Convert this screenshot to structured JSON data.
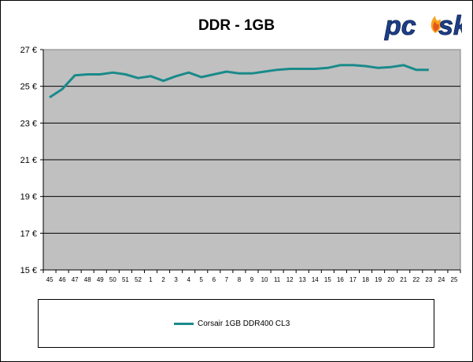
{
  "chart_data": {
    "type": "line",
    "title": "DDR - 1GB",
    "xlabel": "",
    "ylabel": "",
    "categories": [
      "45",
      "46",
      "47",
      "48",
      "49",
      "50",
      "51",
      "52",
      "1",
      "2",
      "3",
      "4",
      "5",
      "6",
      "7",
      "8",
      "9",
      "10",
      "11",
      "12",
      "13",
      "14",
      "15",
      "16",
      "17",
      "18",
      "19",
      "20",
      "21",
      "22",
      "23",
      "24",
      "25"
    ],
    "y_tick_labels": [
      "27 €",
      "25 €",
      "23 €",
      "21 €",
      "19 €",
      "17 €",
      "15 €"
    ],
    "y_ticks": [
      27,
      25,
      23,
      21,
      19,
      17,
      15
    ],
    "ylim": [
      15,
      27
    ],
    "grid": true,
    "legend_position": "bottom",
    "series": [
      {
        "name": "Corsair 1GB DDR400 CL3",
        "color": "#1a8a8a",
        "values": [
          24.4,
          24.85,
          25.6,
          25.65,
          25.65,
          25.75,
          25.65,
          25.45,
          25.55,
          25.3,
          25.55,
          25.75,
          25.5,
          25.65,
          25.8,
          25.7,
          25.7,
          25.8,
          25.9,
          25.95,
          25.95,
          25.95,
          26.0,
          26.15,
          26.15,
          26.1,
          26.0,
          26.05,
          26.15,
          25.9,
          25.9,
          null,
          null
        ]
      }
    ]
  },
  "colors": {
    "plot_bg": "#c0c0c0",
    "grid": "#000000",
    "line": "#1a8a8a"
  },
  "logo": {
    "text": "pcsk"
  }
}
